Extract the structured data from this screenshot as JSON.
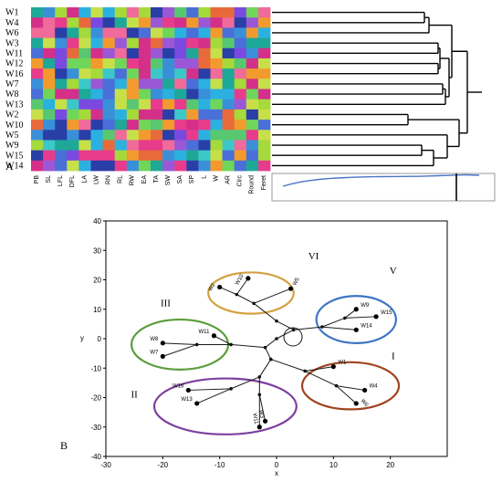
{
  "panel_a": {
    "letter": "A",
    "rows": [
      "W1",
      "W4",
      "W6",
      "W3",
      "W11",
      "W12",
      "W16",
      "W7",
      "W8",
      "W13",
      "W2",
      "W10",
      "W5",
      "W9",
      "W15",
      "W14"
    ],
    "columns": [
      "PB",
      "SL",
      "LFL",
      "DFL",
      "LA",
      "LW",
      "RN",
      "RL",
      "RW",
      "EA",
      "TA",
      "SW",
      "SA",
      "SP",
      "L",
      "W",
      "AR",
      "Circ",
      "Round",
      "Feret"
    ],
    "heatmap_palette": [
      "#e83b8c",
      "#d4308a",
      "#3cc8c8",
      "#2bb1e0",
      "#6fd65a",
      "#a6d93a",
      "#f29a2e",
      "#e86a3a",
      "#4a6fd8",
      "#7a4ae0",
      "#2a3ea8",
      "#1ea898",
      "#c7e04a",
      "#f06a9a",
      "#9a58d6",
      "#3a90d8",
      "#58c870"
    ]
  },
  "panel_b": {
    "letter": "B",
    "chart_data": {
      "type": "scatter",
      "title": "",
      "xlabel": "x",
      "ylabel": "y",
      "xlim": [
        -30,
        30
      ],
      "ylim": [
        -40,
        40
      ],
      "xticks": [
        -30,
        -20,
        -10,
        0,
        10,
        20
      ],
      "yticks": [
        40,
        30,
        20,
        10,
        0,
        -10,
        -20,
        -30,
        -40
      ],
      "leaves": [
        {
          "name": "W1",
          "x": 10,
          "y": -9.5
        },
        {
          "name": "W4",
          "x": 15.5,
          "y": -17.5
        },
        {
          "name": "W6",
          "x": 14,
          "y": -22
        },
        {
          "name": "W9",
          "x": 14,
          "y": 10
        },
        {
          "name": "W15",
          "x": 17.5,
          "y": 7.5
        },
        {
          "name": "W14",
          "x": 14,
          "y": 3
        },
        {
          "name": "W2",
          "x": -10,
          "y": 17.5
        },
        {
          "name": "W10",
          "x": -5,
          "y": 20.5
        },
        {
          "name": "W5",
          "x": 2.5,
          "y": 17
        },
        {
          "name": "W11",
          "x": -11,
          "y": 1
        },
        {
          "name": "W8",
          "x": -20,
          "y": -1.5
        },
        {
          "name": "W7",
          "x": -20,
          "y": -6
        },
        {
          "name": "W16",
          "x": -15.5,
          "y": -17.5
        },
        {
          "name": "W13",
          "x": -14,
          "y": -22
        },
        {
          "name": "W3",
          "x": -2,
          "y": -28
        },
        {
          "name": "W11",
          "x": -3,
          "y": -30
        }
      ],
      "clusters": [
        {
          "name": "I",
          "color": "#a0431f"
        },
        {
          "name": "II",
          "color": "#7d3f9e"
        },
        {
          "name": "III",
          "color": "#5b9d3c"
        },
        {
          "name": "V",
          "color": "#3d74c4"
        },
        {
          "name": "VI",
          "color": "#d4a140"
        }
      ]
    }
  }
}
